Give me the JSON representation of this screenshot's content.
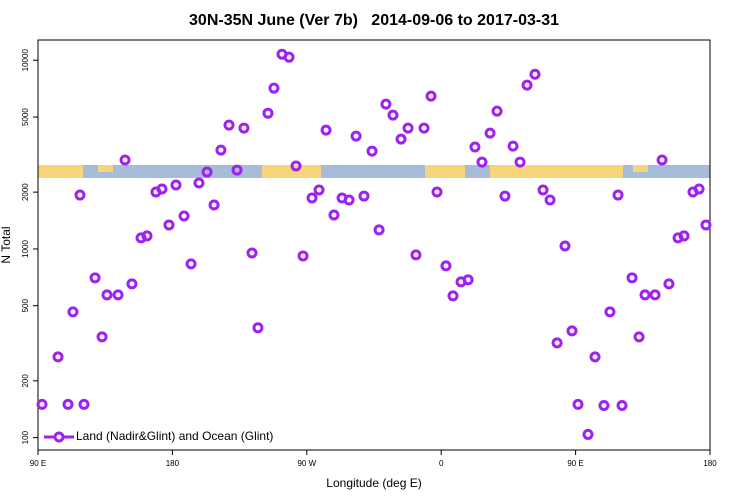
{
  "chart_data": {
    "type": "scatter",
    "title": "30N-35N June (Ver 7b)   2014-09-06 to 2017-03-31",
    "x_label": "Longitude (deg E)",
    "y_label": "N Total",
    "log_y": true,
    "legend_position": "lower left",
    "x": [
      92.7,
      103.4,
      110.1,
      113.4,
      118.1,
      120.8,
      128.2,
      132.9,
      136.2,
      143.6,
      148.3,
      152.9,
      159.0,
      163.0,
      169.0,
      173.0,
      177.7,
      182.4,
      187.8,
      192.5,
      197.8,
      203.2,
      207.9,
      212.5,
      217.9,
      223.3,
      227.9,
      233.3,
      237.3,
      244.0,
      248.0,
      253.4,
      258.1,
      262.8,
      267.5,
      273.5,
      278.2,
      282.9,
      288.2,
      293.6,
      298.3,
      303.0,
      308.3,
      313.7,
      318.4,
      323.0,
      327.7,
      333.1,
      337.8,
      343.1,
      348.5,
      353.2,
      357.2,
      363.2,
      367.9,
      373.3,
      378.0,
      382.6,
      387.3,
      392.7,
      397.4,
      402.7,
      408.1,
      412.8,
      417.5,
      422.8,
      428.2,
      432.9,
      437.6,
      442.9,
      447.6,
      451.6,
      458.3,
      463.0,
      469.0,
      473.0,
      478.4,
      481.1,
      487.8,
      492.5,
      496.5,
      503.2,
      507.9,
      512.5,
      518.6,
      522.6,
      528.6,
      532.7,
      537.3
    ],
    "series": [
      {
        "name": "Land (Nadir&Glint) and Ocean (Glint)",
        "color": "#a020f0",
        "values": [
          150,
          268,
          150,
          464,
          1930,
          150,
          703,
          342,
          571,
          571,
          2960,
          653,
          1144,
          1172,
          2003,
          2077,
          1340,
          2181,
          1495,
          833,
          2235,
          2555,
          1709,
          3341,
          4530,
          2618,
          4370,
          952,
          382,
          5240,
          7110,
          10760,
          10380,
          2750,
          918,
          1862,
          2052,
          4260,
          1513,
          1862,
          1817,
          3962,
          1906,
          3301,
          1261,
          5850,
          5116,
          3818,
          4370,
          930,
          4370,
          6450,
          2003,
          813,
          564,
          669,
          686,
          3467,
          2886,
          4110,
          5370,
          1906,
          3508,
          2886,
          7380,
          8430,
          2052,
          1817,
          318,
          1037,
          368,
          150,
          104,
          268,
          148,
          464,
          1930,
          148,
          703,
          342,
          571,
          571,
          2960,
          653,
          1144,
          1172,
          2003,
          2077,
          1340
        ]
      }
    ],
    "xlim": [
      90,
      540
    ],
    "xticks": [
      {
        "value": 90,
        "label": "90 E"
      },
      {
        "value": 180,
        "label": "180"
      },
      {
        "value": 270,
        "label": "90 W"
      },
      {
        "value": 360,
        "label": "0"
      },
      {
        "value": 450,
        "label": "90 E"
      },
      {
        "value": 540,
        "label": "180"
      }
    ],
    "ylim": [
      86,
      12800
    ],
    "yticks": [
      100,
      200,
      500,
      1000,
      2000,
      5000,
      10000
    ]
  }
}
